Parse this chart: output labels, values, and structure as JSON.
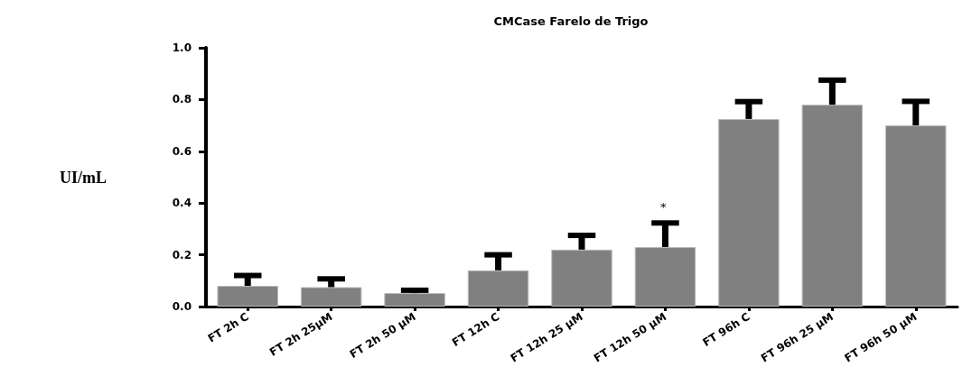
{
  "chart_data": {
    "type": "bar",
    "title": "CMCase Farelo de Trigo",
    "ylabel": "UI/mL",
    "categories": [
      "FT 2h C",
      "FT 2h 25µM",
      "FT 2h 50 µM",
      "FT 12h C",
      "FT 12h 25 µM",
      "FT 12h 50 µM",
      "FT 96h C",
      "FT 96h 25 µM",
      "FT 96h 50 µM"
    ],
    "values": [
      0.08,
      0.075,
      0.052,
      0.14,
      0.22,
      0.23,
      0.725,
      0.78,
      0.7
    ],
    "errors": [
      [
        0.08,
        0.12
      ],
      [
        0.075,
        0.107
      ],
      [
        0.052,
        0.063
      ],
      [
        0.14,
        0.2
      ],
      [
        0.22,
        0.275
      ],
      [
        0.23,
        0.323
      ],
      [
        0.725,
        0.792
      ],
      [
        0.78,
        0.875
      ],
      [
        0.7,
        0.793
      ]
    ],
    "color": "#808080",
    "ylim": [
      0,
      1
    ],
    "yticks": [
      {
        "value": 0,
        "label": "0.0"
      },
      {
        "value": 0.2,
        "label": "0.2"
      },
      {
        "value": 0.4,
        "label": "0.4"
      },
      {
        "value": 0.6,
        "label": "0.6"
      },
      {
        "value": 0.8,
        "label": "0.8"
      },
      {
        "value": 1,
        "label": "1.0"
      }
    ],
    "annotations": [
      "*"
    ],
    "grid": false
  }
}
